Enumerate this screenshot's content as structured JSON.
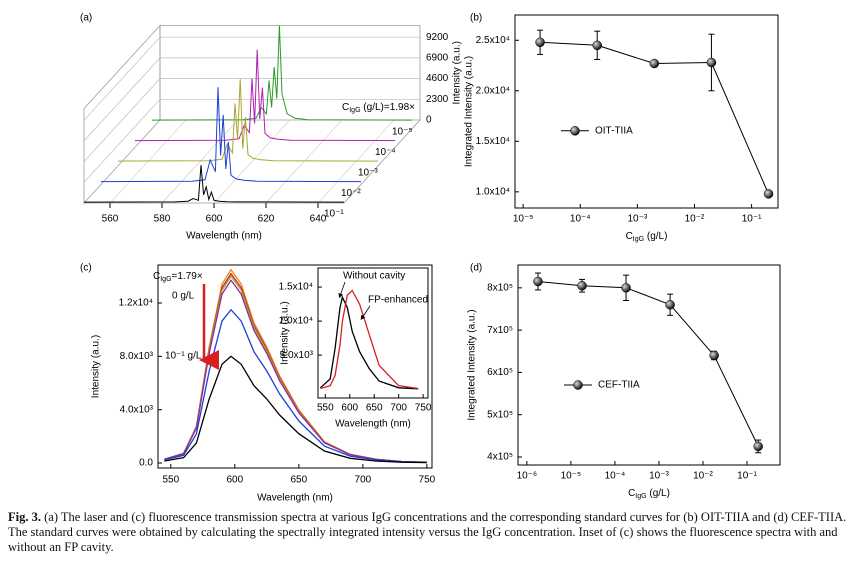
{
  "chart_data": [
    {
      "type": "waterfall",
      "panel_label": "(a)",
      "x_label": "Wavelength (nm)",
      "y_label": "Intensity (a.u.)",
      "annotation": {
        "main": "C",
        "sub": "IgG",
        "rest": " (g/L)=1.98×"
      },
      "x": [
        550,
        585,
        590,
        592,
        594,
        595,
        596,
        597,
        598,
        599,
        600,
        602,
        605,
        610,
        650
      ],
      "series": [
        {
          "name": "10⁻¹",
          "color": "#000000",
          "values": [
            100,
            120,
            200,
            500,
            300,
            4200,
            900,
            1800,
            400,
            1200,
            300,
            200,
            150,
            120,
            100
          ]
        },
        {
          "name": "10⁻²",
          "color": "#1f3fd6",
          "values": [
            100,
            150,
            300,
            2500,
            1200,
            10600,
            3000,
            7500,
            1500,
            4500,
            800,
            400,
            250,
            150,
            100
          ]
        },
        {
          "name": "10⁻³",
          "color": "#a8a832",
          "values": [
            100,
            150,
            300,
            2000,
            1000,
            6500,
            2500,
            9200,
            1500,
            5000,
            800,
            400,
            250,
            150,
            100
          ]
        },
        {
          "name": "10⁻⁴",
          "color": "#b020b0",
          "values": [
            100,
            150,
            300,
            1800,
            1000,
            7000,
            2000,
            10200,
            2500,
            6000,
            900,
            400,
            250,
            150,
            100
          ]
        },
        {
          "name": "10⁻⁵",
          "color": "#2a9a2a",
          "values": [
            100,
            150,
            300,
            1500,
            800,
            4500,
            1500,
            6000,
            2500,
            10600,
            3000,
            800,
            300,
            150,
            100
          ]
        }
      ],
      "xlim": [
        550,
        650
      ],
      "xticks": [
        560,
        580,
        600,
        620,
        640
      ],
      "ylim": [
        0,
        10500
      ],
      "yticks": [
        0,
        2300,
        4600,
        6900,
        9200
      ]
    },
    {
      "type": "scatter",
      "panel_label": "(b)",
      "x_label": {
        "main": "C",
        "sub": "IgG",
        "rest": " (g/L)"
      },
      "y_label": "Integrated Intensity (a.u.)",
      "x": [
        1.98e-05,
        0.000198,
        0.00198,
        0.0198,
        0.198
      ],
      "series": [
        {
          "name": "OIT-TIIA",
          "color": "#000000",
          "values": [
            24800,
            24500,
            22700,
            22800,
            9800
          ],
          "errors": [
            1200,
            1400,
            300,
            2800,
            200
          ]
        }
      ],
      "log_x": true,
      "legend": "center-left",
      "xlim": [
        7.2e-06,
        0.29
      ],
      "xticks": [
        {
          "value": 1e-05,
          "label": "10⁻⁵"
        },
        {
          "value": 0.0001,
          "label": "10⁻⁴"
        },
        {
          "value": 0.001,
          "label": "10⁻³"
        },
        {
          "value": 0.01,
          "label": "10⁻²"
        },
        {
          "value": 0.1,
          "label": "10⁻¹"
        }
      ],
      "ylim": [
        8400,
        27500
      ],
      "yticks": [
        {
          "value": 10000,
          "label": "1.0x10⁴"
        },
        {
          "value": 15000,
          "label": "1.5x10⁴"
        },
        {
          "value": 20000,
          "label": "2.0x10⁴"
        },
        {
          "value": 25000,
          "label": "2.5x10⁴"
        }
      ]
    },
    {
      "type": "line",
      "panel_label": "(c)",
      "x_label": "Wavelength (nm)",
      "y_label": "Intensity (a.u.)",
      "annotations": {
        "concentration": {
          "main": "C",
          "sub": "IgG",
          "rest": "=1.79×"
        },
        "start": "0 g/L",
        "end": "10⁻¹ g/L"
      },
      "x": [
        545,
        560,
        570,
        580,
        590,
        597,
        605,
        615,
        625,
        635,
        650,
        670,
        690,
        710,
        730,
        750
      ],
      "series": [
        {
          "color": "#e08a1e",
          "values": [
            290,
            730,
            2760,
            8700,
            13410,
            14500,
            13410,
            10510,
            8700,
            6530,
            3990,
            1600,
            650,
            290,
            115,
            60
          ]
        },
        {
          "color": "#d62020",
          "values": [
            280,
            710,
            2700,
            8520,
            13140,
            14200,
            13140,
            10300,
            8520,
            6390,
            3900,
            1560,
            640,
            280,
            115,
            55
          ]
        },
        {
          "color": "#a8a832",
          "values": [
            280,
            700,
            2660,
            8400,
            12950,
            14000,
            12950,
            10150,
            8400,
            6300,
            3850,
            1540,
            630,
            280,
            110,
            55
          ]
        },
        {
          "color": "#8a2aa8",
          "values": [
            270,
            690,
            2600,
            8220,
            12670,
            13700,
            12670,
            9930,
            8220,
            6170,
            3770,
            1510,
            620,
            270,
            110,
            55
          ]
        },
        {
          "color": "#1f3fd6",
          "values": [
            230,
            580,
            2180,
            6900,
            10640,
            11500,
            10640,
            8340,
            6900,
            5180,
            3160,
            1270,
            520,
            230,
            90,
            45
          ]
        },
        {
          "color": "#000000",
          "values": [
            150,
            400,
            1500,
            4800,
            7400,
            8000,
            7400,
            5800,
            4800,
            3600,
            2200,
            900,
            350,
            150,
            60,
            30
          ]
        }
      ],
      "xlim": [
        540,
        754
      ],
      "xticks": [
        550,
        600,
        650,
        700,
        750
      ],
      "ylim": [
        -375,
        14850
      ],
      "yticks": [
        {
          "value": 0,
          "label": "0.0"
        },
        {
          "value": 4000,
          "label": "4.0x10³"
        },
        {
          "value": 8000,
          "label": "8.0x10³"
        },
        {
          "value": 12000,
          "label": "1.2x10⁴"
        }
      ],
      "inset": {
        "x_label": "Wavelength (nm)",
        "y_label": "Intensity (a.u.)",
        "x": [
          540,
          560,
          570,
          580,
          585,
          595,
          605,
          620,
          640,
          660,
          700,
          740
        ],
        "series": [
          {
            "name": "Without cavity",
            "color": "#000000",
            "values": [
              200,
              1500,
              6000,
              12000,
              13500,
              12000,
              8500,
              5500,
              3000,
              1200,
              200,
              50
            ]
          },
          {
            "name": "FP-enhanced",
            "color": "#d62020",
            "values": [
              100,
              500,
              2000,
              6500,
              10000,
              13800,
              14500,
              12500,
              8000,
              3500,
              500,
              100
            ]
          }
        ],
        "xlim": [
          535,
          760
        ],
        "xticks": [
          550,
          600,
          650,
          700,
          750
        ],
        "ylim": [
          -1300,
          17800
        ],
        "yticks": [
          {
            "value": 5000,
            "label": "5.0x10³"
          },
          {
            "value": 10000,
            "label": "1.0x10⁴"
          },
          {
            "value": 15000,
            "label": "1.5x10⁴"
          }
        ]
      }
    },
    {
      "type": "scatter",
      "panel_label": "(d)",
      "x_label": {
        "main": "C",
        "sub": "IgG",
        "rest": " (g/L)"
      },
      "y_label": "Integrated Intensity (a.u.)",
      "x": [
        1.79e-06,
        1.79e-05,
        0.000179,
        0.00179,
        0.0179,
        0.179
      ],
      "series": [
        {
          "name": "CEF-TIIA",
          "color": "#000000",
          "values": [
            815000,
            805000,
            800000,
            760000,
            640000,
            425000
          ],
          "errors": [
            20000,
            15000,
            30000,
            25000,
            10000,
            15000
          ]
        }
      ],
      "log_x": true,
      "legend": "center-left",
      "xlim": [
        6.3e-07,
        0.56
      ],
      "xticks": [
        {
          "value": 1e-06,
          "label": "10⁻⁶"
        },
        {
          "value": 1e-05,
          "label": "10⁻⁵"
        },
        {
          "value": 0.0001,
          "label": "10⁻⁴"
        },
        {
          "value": 0.001,
          "label": "10⁻³"
        },
        {
          "value": 0.01,
          "label": "10⁻²"
        },
        {
          "value": 0.1,
          "label": "10⁻¹"
        }
      ],
      "ylim": [
        381000,
        854000
      ],
      "yticks": [
        {
          "value": 400000,
          "label": "4x10⁵"
        },
        {
          "value": 500000,
          "label": "5x10⁵"
        },
        {
          "value": 600000,
          "label": "6x10⁵"
        },
        {
          "value": 700000,
          "label": "7x10⁵"
        },
        {
          "value": 800000,
          "label": "8x10⁵"
        }
      ]
    }
  ],
  "caption": {
    "label": "Fig. 3.",
    "text": "(a) The laser and (c) fluorescence transmission spectra at various IgG concentrations and the corresponding standard curves for (b) OIT-TIIA and (d) CEF-TIIA. The standard curves were obtained by calculating the spectrally integrated intensity versus the IgG concentration. Inset of (c) shows the fluorescence spectra with and without an FP cavity."
  }
}
